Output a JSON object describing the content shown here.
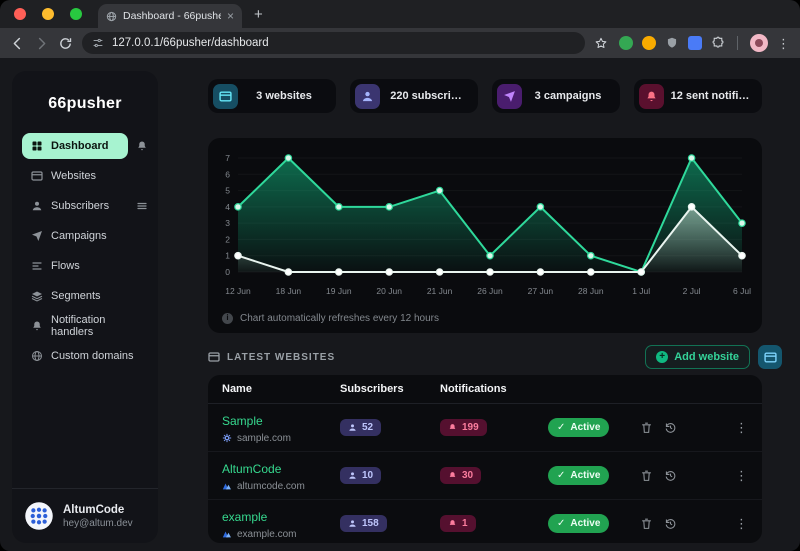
{
  "browser": {
    "tab_title": "Dashboard - 66pusher",
    "url": "127.0.0.1/66pusher/dashboard"
  },
  "glyphs": {
    "close": "×",
    "new_tab": "+",
    "menu_dots": "⋮",
    "row_menu": "⋮",
    "check": "✓",
    "info": "i",
    "plus": "+"
  },
  "sidebar": {
    "brand": "66pusher",
    "items": [
      {
        "label": "Dashboard"
      },
      {
        "label": "Websites"
      },
      {
        "label": "Subscribers"
      },
      {
        "label": "Campaigns"
      },
      {
        "label": "Flows"
      },
      {
        "label": "Segments"
      },
      {
        "label": "Notification handlers"
      },
      {
        "label": "Custom domains"
      }
    ],
    "user": {
      "name": "AltumCode",
      "email": "hey@altum.dev"
    }
  },
  "stats": [
    {
      "label": "3 websites"
    },
    {
      "label": "220 subscri…"
    },
    {
      "label": "3 campaigns"
    },
    {
      "label": "12 sent notifi…"
    }
  ],
  "chart_data": {
    "type": "area",
    "title": "",
    "x": [
      "12 Jun",
      "18 Jun",
      "19 Jun",
      "20 Jun",
      "21 Jun",
      "26 Jun",
      "27 Jun",
      "28 Jun",
      "1 Jul",
      "2 Jul",
      "6 Jul"
    ],
    "series": [
      {
        "name": "green-series",
        "color": "#2fd99b",
        "fill": "#10b981",
        "point_fill": "#d9f6e9",
        "values": [
          4,
          7,
          4,
          4,
          5,
          1,
          4,
          1,
          0,
          7,
          3
        ]
      },
      {
        "name": "white-series",
        "color": "#e9f4ef",
        "fill": "#cde6d9",
        "point_fill": "#ffffff",
        "values": [
          1,
          0,
          0,
          0,
          0,
          0,
          0,
          0,
          0,
          4,
          1
        ]
      }
    ],
    "ylim": [
      0,
      7
    ],
    "yticks": [
      0,
      1,
      2,
      3,
      4,
      5,
      6,
      7
    ],
    "grid": "faint-horizontal",
    "legend": "none"
  },
  "chart_note": "Chart automatically refreshes every 12 hours",
  "websites": {
    "section_title": "LATEST WEBSITES",
    "add_button": "Add website",
    "table": {
      "headers": [
        "Name",
        "Subscribers",
        "Notifications"
      ],
      "rows": [
        {
          "name": "Sample",
          "domain": "sample.com",
          "subscribers": "52",
          "notifications": "199",
          "status": "Active"
        },
        {
          "name": "AltumCode",
          "domain": "altumcode.com",
          "subscribers": "10",
          "notifications": "30",
          "status": "Active"
        },
        {
          "name": "example",
          "domain": "example.com",
          "subscribers": "158",
          "notifications": "1",
          "status": "Active"
        }
      ]
    }
  },
  "colors": {
    "accent_green": "#34d399",
    "active_nav_bg": "#a7f3d0",
    "page_bg": "#17181c",
    "panel_bg": "#0a0b0e",
    "sidebar_bg": "#121318",
    "badge_subscribers_bg": "#343061",
    "badge_notifications_bg": "#55102f",
    "status_active_bg": "#21a351"
  }
}
